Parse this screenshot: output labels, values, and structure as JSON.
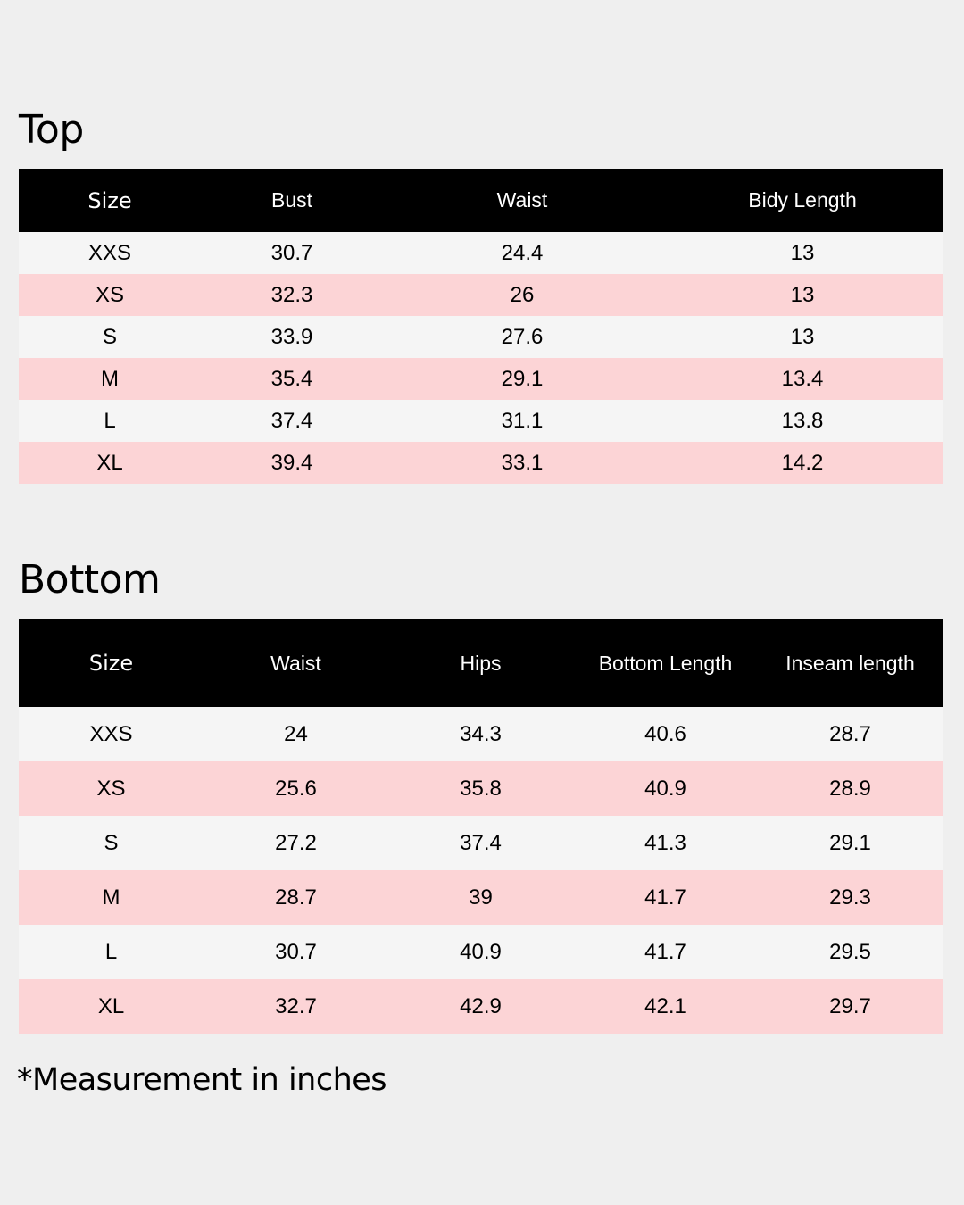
{
  "top": {
    "title": "Top",
    "headers": [
      "Size",
      "Bust",
      "Waist",
      "Bidy Length"
    ],
    "rows": [
      [
        "XXS",
        "30.7",
        "24.4",
        "13"
      ],
      [
        "XS",
        "32.3",
        "26",
        "13"
      ],
      [
        "S",
        "33.9",
        "27.6",
        "13"
      ],
      [
        "M",
        "35.4",
        "29.1",
        "13.4"
      ],
      [
        "L",
        "37.4",
        "31.1",
        "13.8"
      ],
      [
        "XL",
        "39.4",
        "33.1",
        "14.2"
      ]
    ]
  },
  "bottom": {
    "title": "Bottom",
    "headers": [
      "Size",
      "Waist",
      "Hips",
      "Bottom Length",
      "Inseam length"
    ],
    "rows": [
      [
        "XXS",
        "24",
        "34.3",
        "40.6",
        "28.7"
      ],
      [
        "XS",
        "25.6",
        "35.8",
        "40.9",
        "28.9"
      ],
      [
        "S",
        "27.2",
        "37.4",
        "41.3",
        "29.1"
      ],
      [
        "M",
        "28.7",
        "39",
        "41.7",
        "29.3"
      ],
      [
        "L",
        "30.7",
        "40.9",
        "41.7",
        "29.5"
      ],
      [
        "XL",
        "32.7",
        "42.9",
        "42.1",
        "29.7"
      ]
    ]
  },
  "footnote": "*Measurement in inches",
  "colors": {
    "header_bg": "#000000",
    "header_text": "#ffffff",
    "row_light": "#f5f5f5",
    "row_pink": "#fcd4d6",
    "page_bg": "#efefef"
  }
}
